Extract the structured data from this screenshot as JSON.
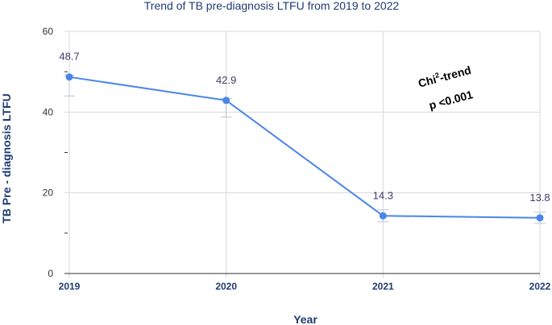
{
  "chart_data": {
    "type": "line",
    "title": "Trend of TB pre-diagnosis LTFU from 2019 to 2022",
    "xlabel": "Year",
    "ylabel": "TB Pre - diagnosis LTFU",
    "categories": [
      "2019",
      "2020",
      "2021",
      "2022"
    ],
    "series": [
      {
        "name": "TB pre-diagnosis LTFU",
        "values": [
          48.7,
          42.9,
          14.3,
          13.8
        ],
        "labels": [
          "48.7",
          "42.9",
          "14.3",
          "13.8"
        ],
        "error_low": [
          44.0,
          38.8,
          12.8,
          12.4
        ],
        "error_high": [
          49.2,
          43.4,
          15.8,
          15.2
        ],
        "color": "#4a86e8"
      }
    ],
    "ylim": [
      0,
      60
    ],
    "yticks": [
      "0",
      "20",
      "40",
      "60"
    ],
    "grid": true,
    "annotation": {
      "line1_base": "Chi",
      "line1_sup": "2",
      "line1_rest": "-trend",
      "line2": "p <0.001"
    }
  }
}
